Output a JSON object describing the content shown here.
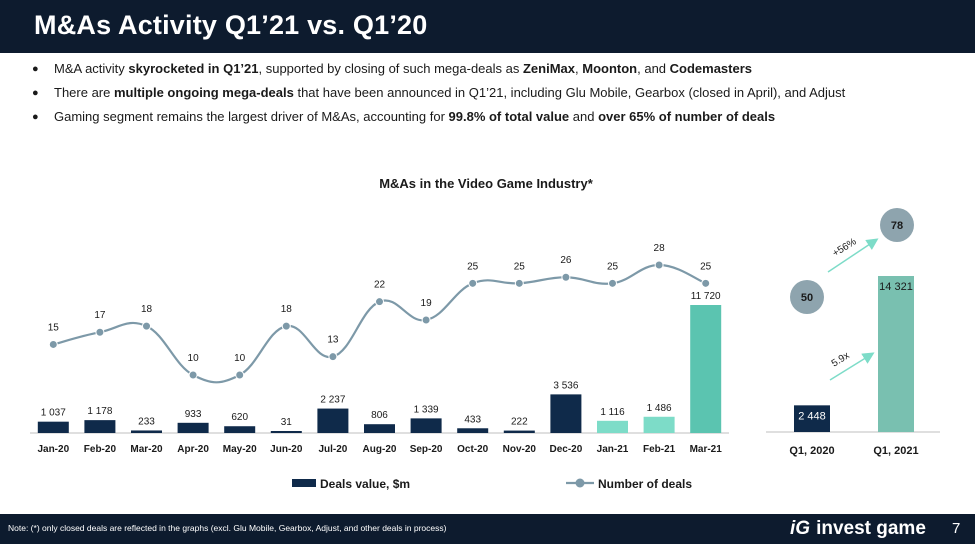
{
  "header": {
    "title": "M&As Activity Q1’21 vs. Q1’20"
  },
  "bullets": [
    {
      "parts": [
        {
          "t": "M&A activity ",
          "b": false
        },
        {
          "t": "skyrocketed in Q1’21",
          "b": true
        },
        {
          "t": ", supported by closing of such mega-deals as ",
          "b": false
        },
        {
          "t": "ZeniMax",
          "b": true
        },
        {
          "t": ", ",
          "b": false
        },
        {
          "t": "Moonton",
          "b": true
        },
        {
          "t": ", and ",
          "b": false
        },
        {
          "t": "Codemasters",
          "b": true
        }
      ]
    },
    {
      "parts": [
        {
          "t": "There are ",
          "b": false
        },
        {
          "t": "multiple ongoing mega-deals",
          "b": true
        },
        {
          "t": " that have been announced in Q1’21, including Glu Mobile, Gearbox (closed in April), and Adjust",
          "b": false
        }
      ]
    },
    {
      "parts": [
        {
          "t": "Gaming segment remains the largest driver of M&As, accounting for ",
          "b": false
        },
        {
          "t": "99.8% of total value",
          "b": true
        },
        {
          "t": " and ",
          "b": false
        },
        {
          "t": "over 65% of number of deals",
          "b": true
        }
      ]
    }
  ],
  "chart_data": [
    {
      "type": "bar+line",
      "title": "M&As in the Video Game Industry*",
      "categories": [
        "Jan-20",
        "Feb-20",
        "Mar-20",
        "Apr-20",
        "May-20",
        "Jun-20",
        "Jul-20",
        "Aug-20",
        "Sep-20",
        "Oct-20",
        "Nov-20",
        "Dec-20",
        "Jan-21",
        "Feb-21",
        "Mar-21"
      ],
      "series": [
        {
          "name": "Deals value, $m",
          "type": "bar",
          "values": [
            1037,
            1178,
            233,
            933,
            620,
            31,
            2237,
            806,
            1339,
            433,
            222,
            3536,
            1116,
            1486,
            11720
          ],
          "labels": [
            "1 037",
            "1 178",
            "233",
            "933",
            "620",
            "31",
            "2 237",
            "806",
            "1 339",
            "433",
            "222",
            "3 536",
            "1 116",
            "1 486",
            "11 720"
          ]
        },
        {
          "name": "Number of deals",
          "type": "line",
          "values": [
            15,
            17,
            18,
            10,
            10,
            18,
            13,
            22,
            19,
            25,
            25,
            26,
            25,
            28,
            25
          ]
        }
      ],
      "legend_position": "bottom",
      "grid": false
    },
    {
      "type": "bar",
      "categories": [
        "Q1, 2020",
        "Q1, 2021"
      ],
      "values": [
        2448,
        14321
      ],
      "labels": [
        "2 448",
        "14 321"
      ],
      "deal_counts": [
        50,
        78
      ],
      "annotations": [
        "+56%",
        "5.9x"
      ]
    }
  ],
  "colors": {
    "dark": "#0f2a4a",
    "teal_light": "#7ddcc8",
    "teal": "#5bc4b0",
    "q1_21": "#79c0b0",
    "line": "#7d99a8",
    "circle": "#8ea4ae",
    "arrow": "#7ddcc8"
  },
  "footer": {
    "note": "Note: (*) only closed deals are reflected in the graphs (excl. Glu Mobile, Gearbox, Adjust, and other deals in process)",
    "brand": "invest game",
    "brand_mark": "iG",
    "page": "7"
  }
}
